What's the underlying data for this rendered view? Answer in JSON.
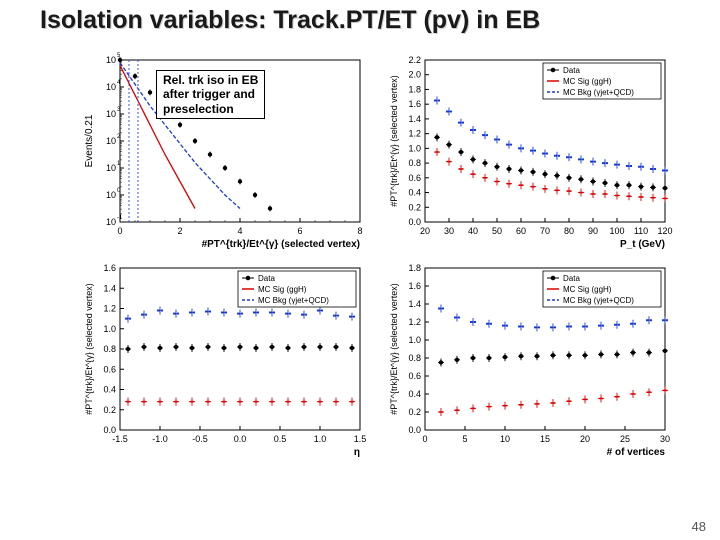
{
  "page_number": "48",
  "title": "Isolation variables:  Track.PT/ET (pv) in EB",
  "annotation": {
    "line1": "Rel. trk iso in EB",
    "line2": "after trigger and",
    "line3": "preselection"
  },
  "legend": {
    "data": {
      "label": "Data",
      "color": "#000000",
      "marker": "circle"
    },
    "sig": {
      "label": "MC Sig (ggH)",
      "color": "#dd0000",
      "marker": "line"
    },
    "bkg": {
      "label": "MC Bkg (γjet+QCD)",
      "color": "#1a3ad6",
      "marker": "dash"
    }
  },
  "colors": {
    "axis": "#000000",
    "grid": "#e8e8e8",
    "frame": "#000000",
    "bg": "#ffffff"
  },
  "plot_tl": {
    "type": "histogram-log",
    "xlabel": "#PT^{trk}/Et^{γ} (selected vertex)",
    "ylabel": "Events/0.21",
    "xlim": [
      0,
      8
    ],
    "xtick_step": 2,
    "ylog_exps": [
      -1,
      0,
      1,
      2,
      3,
      4,
      5
    ],
    "series": {
      "data": [
        5.0,
        4.4,
        3.8,
        3.2,
        2.6,
        2.0,
        1.5,
        1.0,
        0.5,
        0.0,
        -0.5
      ],
      "sig": [
        4.8,
        3.7,
        2.6,
        1.5,
        0.5,
        -0.5
      ],
      "bkg": [
        4.9,
        4.1,
        3.3,
        2.6,
        1.9,
        1.2,
        0.6,
        0.0,
        -0.5
      ]
    }
  },
  "plot_tr": {
    "type": "scatter",
    "xlabel": "P_t (GeV)",
    "ylabel": "#PT^{trk}/Et^{γ} (selected vertex)",
    "xlim": [
      20,
      120
    ],
    "xtick_step": 10,
    "ylim": [
      0,
      2.2
    ],
    "ytick_step": 0.2,
    "series": {
      "data": {
        "x": [
          25,
          30,
          35,
          40,
          45,
          50,
          55,
          60,
          65,
          70,
          75,
          80,
          85,
          90,
          95,
          100,
          105,
          110,
          115,
          120
        ],
        "y": [
          1.15,
          1.05,
          0.95,
          0.85,
          0.8,
          0.75,
          0.72,
          0.7,
          0.68,
          0.65,
          0.63,
          0.6,
          0.58,
          0.55,
          0.53,
          0.5,
          0.5,
          0.48,
          0.47,
          0.46
        ]
      },
      "sig": {
        "x": [
          25,
          30,
          35,
          40,
          45,
          50,
          55,
          60,
          65,
          70,
          75,
          80,
          85,
          90,
          95,
          100,
          105,
          110,
          115,
          120
        ],
        "y": [
          0.95,
          0.82,
          0.72,
          0.65,
          0.6,
          0.55,
          0.52,
          0.5,
          0.48,
          0.45,
          0.43,
          0.42,
          0.4,
          0.38,
          0.38,
          0.36,
          0.35,
          0.34,
          0.33,
          0.32
        ]
      },
      "bkg": {
        "x": [
          25,
          30,
          35,
          40,
          45,
          50,
          55,
          60,
          65,
          70,
          75,
          80,
          85,
          90,
          95,
          100,
          105,
          110,
          115,
          120
        ],
        "y": [
          1.65,
          1.5,
          1.35,
          1.25,
          1.18,
          1.12,
          1.05,
          1.0,
          0.97,
          0.93,
          0.9,
          0.88,
          0.85,
          0.82,
          0.8,
          0.78,
          0.76,
          0.75,
          0.72,
          0.7
        ]
      }
    }
  },
  "plot_bl": {
    "type": "scatter",
    "xlabel": "η",
    "ylabel": "#PT^{trk}/Et^{γ} (selected vertex)",
    "xlim": [
      -1.5,
      1.5
    ],
    "xtick_step": 0.5,
    "ylim": [
      0,
      1.6
    ],
    "ytick_step": 0.2,
    "series": {
      "data": {
        "x": [
          -1.4,
          -1.2,
          -1.0,
          -0.8,
          -0.6,
          -0.4,
          -0.2,
          0,
          0.2,
          0.4,
          0.6,
          0.8,
          1.0,
          1.2,
          1.4
        ],
        "y": [
          0.8,
          0.82,
          0.81,
          0.82,
          0.81,
          0.82,
          0.81,
          0.82,
          0.81,
          0.82,
          0.81,
          0.82,
          0.82,
          0.82,
          0.81
        ]
      },
      "sig": {
        "x": [
          -1.4,
          -1.2,
          -1.0,
          -0.8,
          -0.6,
          -0.4,
          -0.2,
          0,
          0.2,
          0.4,
          0.6,
          0.8,
          1.0,
          1.2,
          1.4
        ],
        "y": [
          0.28,
          0.28,
          0.28,
          0.28,
          0.28,
          0.28,
          0.28,
          0.28,
          0.28,
          0.28,
          0.28,
          0.28,
          0.28,
          0.28,
          0.28
        ]
      },
      "bkg": {
        "x": [
          -1.4,
          -1.2,
          -1.0,
          -0.8,
          -0.6,
          -0.4,
          -0.2,
          0,
          0.2,
          0.4,
          0.6,
          0.8,
          1.0,
          1.2,
          1.4
        ],
        "y": [
          1.1,
          1.14,
          1.18,
          1.15,
          1.16,
          1.17,
          1.16,
          1.15,
          1.16,
          1.16,
          1.15,
          1.14,
          1.18,
          1.13,
          1.12
        ]
      }
    }
  },
  "plot_br": {
    "type": "scatter",
    "xlabel": "# of vertices",
    "ylabel": "#PT^{trk}/Et^{γ} (selected vertex)",
    "xlim": [
      0,
      30
    ],
    "xtick_step": 5,
    "ylim": [
      0,
      1.8
    ],
    "ytick_step": 0.2,
    "series": {
      "data": {
        "x": [
          2,
          4,
          6,
          8,
          10,
          12,
          14,
          16,
          18,
          20,
          22,
          24,
          26,
          28,
          30
        ],
        "y": [
          0.75,
          0.78,
          0.8,
          0.8,
          0.81,
          0.82,
          0.82,
          0.83,
          0.83,
          0.83,
          0.84,
          0.84,
          0.86,
          0.86,
          0.88
        ]
      },
      "sig": {
        "x": [
          2,
          4,
          6,
          8,
          10,
          12,
          14,
          16,
          18,
          20,
          22,
          24,
          26,
          28,
          30
        ],
        "y": [
          0.2,
          0.22,
          0.24,
          0.26,
          0.27,
          0.28,
          0.29,
          0.3,
          0.32,
          0.34,
          0.35,
          0.37,
          0.4,
          0.42,
          0.44
        ]
      },
      "bkg": {
        "x": [
          2,
          4,
          6,
          8,
          10,
          12,
          14,
          16,
          18,
          20,
          22,
          24,
          26,
          28,
          30
        ],
        "y": [
          1.35,
          1.25,
          1.2,
          1.18,
          1.16,
          1.15,
          1.14,
          1.14,
          1.15,
          1.15,
          1.16,
          1.17,
          1.18,
          1.22,
          1.22
        ]
      }
    }
  }
}
